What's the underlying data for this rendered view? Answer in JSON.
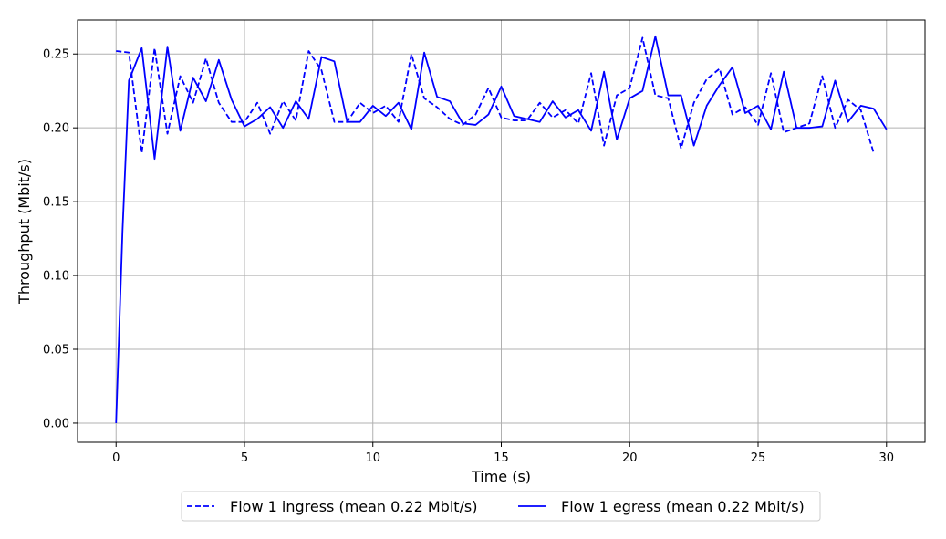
{
  "chart_data": {
    "type": "line",
    "title": "",
    "xlabel": "Time (s)",
    "ylabel": "Throughput (Mbit/s)",
    "xlim": [
      -1.5,
      31.5
    ],
    "ylim": [
      -0.013,
      0.273
    ],
    "xticks": [
      0,
      5,
      10,
      15,
      20,
      25,
      30
    ],
    "yticks": [
      0.0,
      0.05,
      0.1,
      0.15,
      0.2,
      0.25
    ],
    "xtick_labels": [
      "0",
      "5",
      "10",
      "15",
      "20",
      "25",
      "30"
    ],
    "ytick_labels": [
      "0.00",
      "0.05",
      "0.10",
      "0.15",
      "0.20",
      "0.25"
    ],
    "grid": true,
    "legend_position": "below",
    "series": [
      {
        "name": "Flow 1 ingress (mean 0.22 Mbit/s)",
        "color": "#0000ff",
        "dash": "dashed",
        "x": [
          0,
          0.5,
          1.0,
          1.5,
          2.0,
          2.5,
          3.0,
          3.5,
          4.0,
          4.5,
          5.0,
          5.5,
          6.0,
          6.5,
          7.0,
          7.5,
          8.0,
          8.5,
          9.0,
          9.5,
          10.0,
          10.5,
          11.0,
          11.5,
          12.0,
          12.5,
          13.0,
          13.5,
          14.0,
          14.5,
          15.0,
          15.5,
          16.0,
          16.5,
          17.0,
          17.5,
          18.0,
          18.5,
          19.0,
          19.5,
          20.0,
          20.5,
          21.0,
          21.5,
          22.0,
          22.5,
          23.0,
          23.5,
          24.0,
          24.5,
          25.0,
          25.5,
          26.0,
          26.5,
          27.0,
          27.5,
          28.0,
          28.5,
          29.0,
          29.5
        ],
        "y": [
          0.252,
          0.251,
          0.183,
          0.254,
          0.196,
          0.235,
          0.217,
          0.247,
          0.217,
          0.204,
          0.204,
          0.217,
          0.196,
          0.218,
          0.205,
          0.252,
          0.239,
          0.204,
          0.204,
          0.217,
          0.21,
          0.215,
          0.204,
          0.25,
          0.22,
          0.214,
          0.206,
          0.202,
          0.209,
          0.227,
          0.207,
          0.205,
          0.205,
          0.217,
          0.207,
          0.212,
          0.203,
          0.237,
          0.188,
          0.222,
          0.227,
          0.261,
          0.222,
          0.22,
          0.186,
          0.217,
          0.233,
          0.24,
          0.209,
          0.214,
          0.202,
          0.237,
          0.197,
          0.2,
          0.203,
          0.235,
          0.2,
          0.219,
          0.212,
          0.183
        ]
      },
      {
        "name": "Flow 1 egress (mean 0.22 Mbit/s)",
        "color": "#0000ff",
        "dash": "solid",
        "x": [
          0,
          0.25,
          0.5,
          1.0,
          1.5,
          2.0,
          2.5,
          3.0,
          3.5,
          4.0,
          4.5,
          5.0,
          5.5,
          6.0,
          6.5,
          7.0,
          7.5,
          8.0,
          8.5,
          9.0,
          9.5,
          10.0,
          10.5,
          11.0,
          11.5,
          12.0,
          12.5,
          13.0,
          13.5,
          14.0,
          14.5,
          15.0,
          15.5,
          16.0,
          16.5,
          17.0,
          17.5,
          18.0,
          18.5,
          19.0,
          19.5,
          20.0,
          20.5,
          21.0,
          21.5,
          22.0,
          22.5,
          23.0,
          23.5,
          24.0,
          24.5,
          25.0,
          25.5,
          26.0,
          26.5,
          27.0,
          27.5,
          28.0,
          28.5,
          29.0,
          29.5,
          30.0
        ],
        "y": [
          0.0,
          0.13,
          0.232,
          0.254,
          0.179,
          0.255,
          0.198,
          0.234,
          0.218,
          0.246,
          0.219,
          0.201,
          0.206,
          0.214,
          0.2,
          0.218,
          0.206,
          0.248,
          0.245,
          0.204,
          0.204,
          0.215,
          0.208,
          0.217,
          0.199,
          0.251,
          0.221,
          0.218,
          0.203,
          0.202,
          0.209,
          0.228,
          0.208,
          0.206,
          0.204,
          0.218,
          0.207,
          0.212,
          0.198,
          0.238,
          0.192,
          0.22,
          0.225,
          0.262,
          0.222,
          0.222,
          0.188,
          0.215,
          0.229,
          0.241,
          0.21,
          0.215,
          0.199,
          0.238,
          0.2,
          0.2,
          0.201,
          0.232,
          0.204,
          0.215,
          0.213,
          0.199
        ]
      }
    ]
  }
}
